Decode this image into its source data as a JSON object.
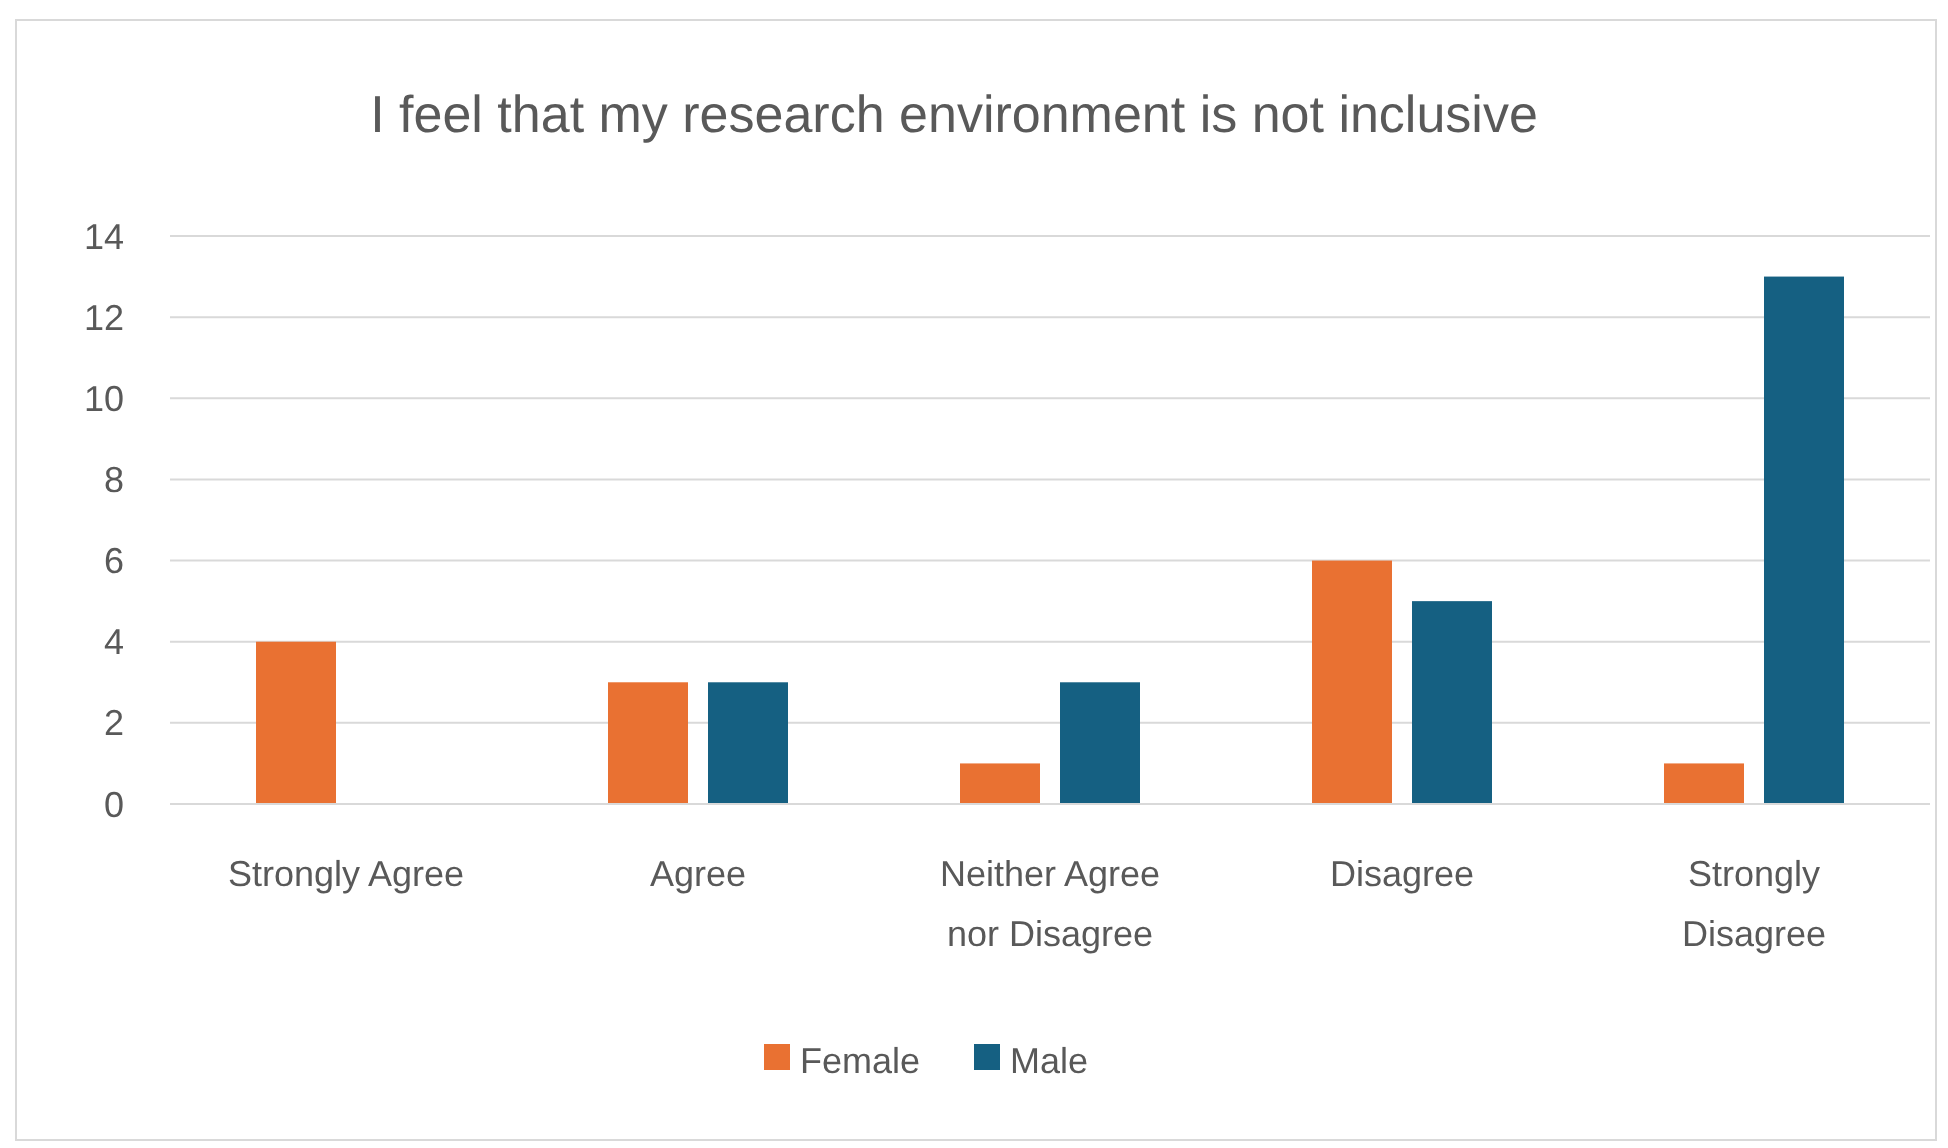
{
  "chart_data": {
    "type": "bar",
    "title": "I feel that my research environment is not inclusive",
    "categories": [
      "Strongly Agree",
      "Agree",
      "Neither Agree nor Disagree",
      "Disagree",
      "Strongly Disagree"
    ],
    "series": [
      {
        "name": "Female",
        "color": "#e97132",
        "values": [
          4,
          3,
          1,
          6,
          1
        ]
      },
      {
        "name": "Male",
        "color": "#156082",
        "values": [
          0,
          3,
          3,
          5,
          13
        ]
      }
    ],
    "ylim": [
      0,
      14
    ],
    "yticks": [
      0,
      2,
      4,
      6,
      8,
      10,
      12,
      14
    ],
    "grid": "y",
    "legend": "bottom"
  }
}
